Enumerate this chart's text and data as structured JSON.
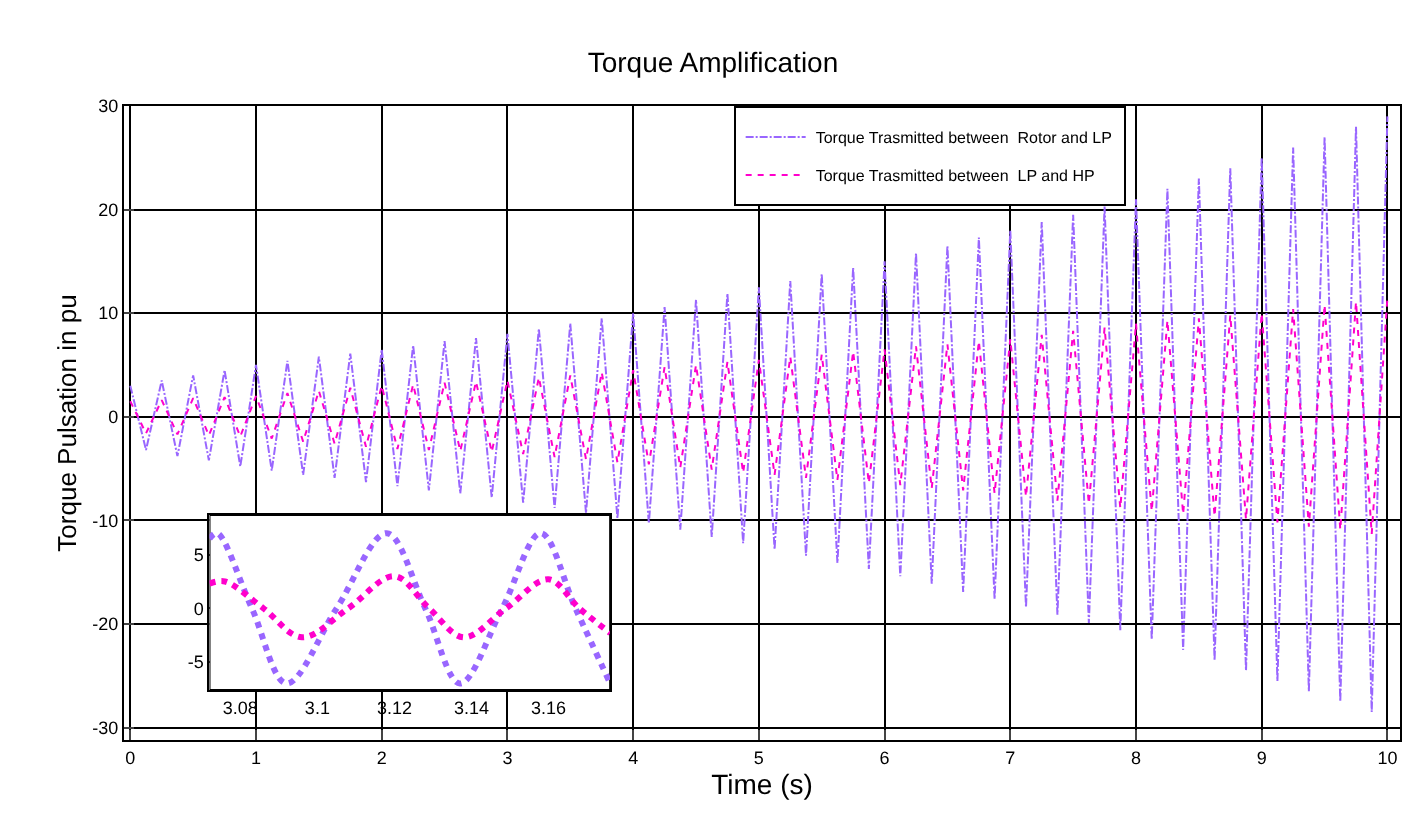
{
  "chart_data": [
    {
      "type": "line",
      "title": "Torque Amplification",
      "xlabel": "Time (s)",
      "ylabel": "Torque Pulsation in pu",
      "x": [
        0,
        0.125,
        0.25,
        0.375,
        0.5,
        0.625,
        0.75,
        0.875,
        1,
        1.125,
        1.25,
        1.375,
        1.5,
        1.625,
        1.75,
        1.875,
        2,
        2.125,
        2.25,
        2.375,
        2.5,
        2.625,
        2.75,
        2.875,
        3,
        3.125,
        3.25,
        3.375,
        3.5,
        3.625,
        3.75,
        3.875,
        4,
        4.125,
        4.25,
        4.375,
        4.5,
        4.625,
        4.75,
        4.875,
        5,
        5.125,
        5.25,
        5.375,
        5.5,
        5.625,
        5.75,
        5.875,
        6,
        6.125,
        6.25,
        6.375,
        6.5,
        6.625,
        6.75,
        6.875,
        7,
        7.125,
        7.25,
        7.375,
        7.5,
        7.625,
        7.75,
        7.875,
        8,
        8.125,
        8.25,
        8.375,
        8.5,
        8.625,
        8.75,
        8.875,
        9,
        9.125,
        9.25,
        9.375,
        9.5,
        9.625,
        9.75,
        9.875,
        10
      ],
      "series": [
        {
          "name": "Torque Trasmitted between  Rotor and LP",
          "color": "#9966ff",
          "line_style": "dashed",
          "values": [
            3,
            -3.2,
            3.5,
            -3.8,
            4,
            -4.2,
            4.5,
            -4.8,
            5,
            -5.2,
            5.4,
            -5.6,
            5.8,
            -5.9,
            6.1,
            -6.3,
            6.5,
            -6.7,
            6.9,
            -7.1,
            7.3,
            -7.4,
            7.6,
            -7.8,
            8,
            -8.3,
            8.5,
            -8.8,
            9,
            -9.3,
            9.5,
            -9.8,
            10,
            -10.3,
            10.6,
            -10.9,
            11.3,
            -11.6,
            11.9,
            -12.2,
            12.5,
            -12.8,
            13.1,
            -13.4,
            13.8,
            -14.1,
            14.4,
            -14.7,
            15,
            -15.4,
            15.8,
            -16.1,
            16.5,
            -16.9,
            17.3,
            -17.6,
            18,
            -18.4,
            18.8,
            -19.1,
            19.5,
            -19.9,
            20.3,
            -20.6,
            21,
            -21.5,
            22,
            -22.5,
            23,
            -23.5,
            24,
            -24.5,
            25,
            -25.5,
            26,
            -26.5,
            27,
            -27.5,
            28,
            -28.5,
            29
          ]
        },
        {
          "name": "Torque Trasmitted between  LP and HP",
          "color": "#ff00cc",
          "line_style": "dotted",
          "values": [
            1.5,
            -1.6,
            1.6,
            -1.7,
            1.8,
            -1.8,
            1.9,
            -1.9,
            2,
            -2.1,
            2.3,
            -2.4,
            2.5,
            -2.6,
            2.8,
            -2.9,
            3,
            -3.1,
            3.1,
            -3.2,
            3.3,
            -3.3,
            3.4,
            -3.4,
            3.5,
            -3.6,
            3.8,
            -3.9,
            4,
            -4.1,
            4.3,
            -4.4,
            4.5,
            -4.6,
            4.8,
            -4.9,
            5,
            -5.1,
            5.3,
            -5.4,
            5.5,
            -5.6,
            5.8,
            -5.9,
            6,
            -6.1,
            6.3,
            -6.4,
            6.5,
            -6.6,
            6.8,
            -6.9,
            7,
            -7.1,
            7.3,
            -7.4,
            7.5,
            -7.7,
            7.9,
            -8.1,
            8.3,
            -8.4,
            8.6,
            -8.8,
            9,
            -9.1,
            9.3,
            -9.4,
            9.5,
            -9.6,
            9.8,
            -9.9,
            10,
            -10.2,
            10.4,
            -10.6,
            10.8,
            -10.9,
            11.1,
            -11.3,
            11.5
          ]
        }
      ],
      "xlim": [
        -0.05,
        10.1
      ],
      "ylim": [
        -31.2,
        30
      ],
      "xticks": [
        0,
        1,
        2,
        3,
        4,
        5,
        6,
        7,
        8,
        9,
        10
      ],
      "yticks": [
        -30,
        -20,
        -10,
        0,
        10,
        20,
        30
      ],
      "grid": true,
      "legend": "top right",
      "marker": "none"
    },
    {
      "type": "line",
      "series": [
        {
          "color": "#9966ff",
          "line_style": "dotted",
          "x": [
            3.072,
            3.074,
            3.083,
            3.092,
            3.105,
            3.118,
            3.128,
            3.137,
            3.148,
            3.158,
            3.167,
            3.176
          ],
          "values": [
            6.5,
            7,
            0,
            -7,
            0,
            7,
            0,
            -7,
            0,
            7,
            0,
            -7
          ]
        },
        {
          "color": "#ff00cc",
          "line_style": "dotted",
          "x": [
            3.072,
            3.076,
            3.086,
            3.096,
            3.108,
            3.12,
            3.129,
            3.138,
            3.149,
            3.16,
            3.168,
            3.176
          ],
          "values": [
            2.3,
            2.5,
            0,
            -2.7,
            0,
            3,
            0,
            -2.7,
            0,
            2.7,
            0,
            -2.3
          ]
        }
      ],
      "xlim": [
        3.072,
        3.176
      ],
      "ylim": [
        -7.6,
        8.7
      ],
      "xticks": [
        3.08,
        3.1,
        3.12,
        3.14,
        3.16
      ],
      "yticks": [
        -5,
        0,
        5
      ],
      "grid": true,
      "legend": false,
      "marker": "none"
    }
  ]
}
